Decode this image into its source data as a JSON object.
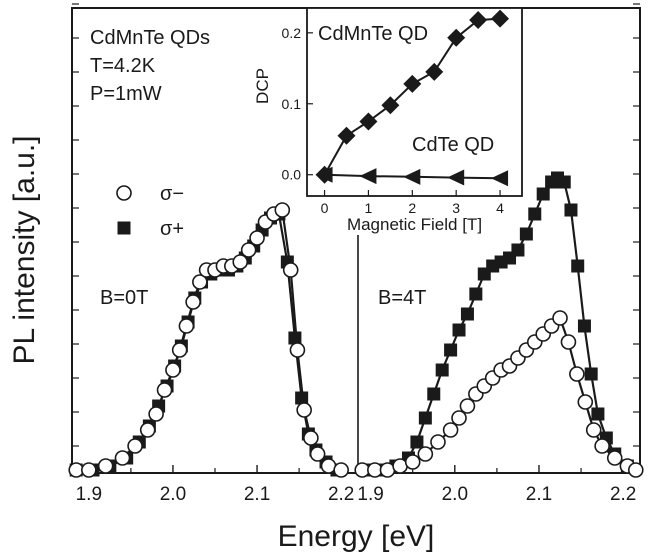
{
  "chart_data": {
    "type": "scatter",
    "ylabel": "PL intensity [a.u.]",
    "xlabel": "Energy [eV]",
    "annotations": [
      "CdMnTe QDs",
      "T=4.2K",
      "P=1mW"
    ],
    "legend": [
      "σ−",
      "σ+"
    ],
    "legend_placement": "left",
    "panels": [
      {
        "label": "B=0T",
        "xlim": [
          1.88,
          2.22
        ],
        "xticks": [
          "1.9",
          "2.0",
          "2.1",
          "2.2"
        ],
        "series": [
          {
            "name": "σ−",
            "marker": "open-circle",
            "points": [
              [
                1.885,
                0.0
              ],
              [
                1.9,
                0.0
              ],
              [
                1.92,
                0.01
              ],
              [
                1.94,
                0.03
              ],
              [
                1.955,
                0.06
              ],
              [
                1.97,
                0.1
              ],
              [
                1.98,
                0.14
              ],
              [
                1.99,
                0.2
              ],
              [
                2.0,
                0.25
              ],
              [
                2.008,
                0.3
              ],
              [
                2.016,
                0.36
              ],
              [
                2.024,
                0.42
              ],
              [
                2.032,
                0.47
              ],
              [
                2.04,
                0.5
              ],
              [
                2.05,
                0.5
              ],
              [
                2.06,
                0.51
              ],
              [
                2.07,
                0.51
              ],
              [
                2.08,
                0.52
              ],
              [
                2.09,
                0.55
              ],
              [
                2.1,
                0.58
              ],
              [
                2.11,
                0.62
              ],
              [
                2.12,
                0.64
              ],
              [
                2.13,
                0.65
              ],
              [
                2.14,
                0.5
              ],
              [
                2.148,
                0.3
              ],
              [
                2.156,
                0.15
              ],
              [
                2.164,
                0.08
              ],
              [
                2.172,
                0.04
              ],
              [
                2.185,
                0.01
              ],
              [
                2.2,
                0.0
              ]
            ]
          },
          {
            "name": "σ+",
            "marker": "filled-square",
            "points": [
              [
                1.885,
                0.0
              ],
              [
                1.905,
                0.0
              ],
              [
                1.925,
                0.01
              ],
              [
                1.945,
                0.03
              ],
              [
                1.96,
                0.07
              ],
              [
                1.972,
                0.11
              ],
              [
                1.983,
                0.16
              ],
              [
                1.993,
                0.21
              ],
              [
                2.002,
                0.26
              ],
              [
                2.01,
                0.31
              ],
              [
                2.018,
                0.37
              ],
              [
                2.026,
                0.43
              ],
              [
                2.034,
                0.47
              ],
              [
                2.045,
                0.49
              ],
              [
                2.056,
                0.5
              ],
              [
                2.066,
                0.5
              ],
              [
                2.076,
                0.51
              ],
              [
                2.086,
                0.53
              ],
              [
                2.096,
                0.56
              ],
              [
                2.106,
                0.6
              ],
              [
                2.116,
                0.63
              ],
              [
                2.126,
                0.64
              ],
              [
                2.136,
                0.52
              ],
              [
                2.145,
                0.33
              ],
              [
                2.153,
                0.18
              ],
              [
                2.161,
                0.09
              ],
              [
                2.17,
                0.05
              ],
              [
                2.182,
                0.02
              ],
              [
                2.195,
                0.0
              ]
            ]
          }
        ]
      },
      {
        "label": "B=4T",
        "xlim": [
          1.885,
          2.22
        ],
        "xticks": [
          "1.9",
          "2.0",
          "2.1",
          "2.2"
        ],
        "series": [
          {
            "name": "σ−",
            "marker": "open-circle",
            "points": [
              [
                1.89,
                0.0
              ],
              [
                1.905,
                0.0
              ],
              [
                1.92,
                0.0
              ],
              [
                1.935,
                0.01
              ],
              [
                1.95,
                0.02
              ],
              [
                1.965,
                0.04
              ],
              [
                1.98,
                0.07
              ],
              [
                1.995,
                0.1
              ],
              [
                2.005,
                0.13
              ],
              [
                2.015,
                0.16
              ],
              [
                2.025,
                0.19
              ],
              [
                2.035,
                0.21
              ],
              [
                2.045,
                0.23
              ],
              [
                2.055,
                0.25
              ],
              [
                2.065,
                0.26
              ],
              [
                2.075,
                0.28
              ],
              [
                2.085,
                0.3
              ],
              [
                2.095,
                0.32
              ],
              [
                2.105,
                0.34
              ],
              [
                2.115,
                0.36
              ],
              [
                2.125,
                0.38
              ],
              [
                2.135,
                0.32
              ],
              [
                2.145,
                0.24
              ],
              [
                2.155,
                0.17
              ],
              [
                2.165,
                0.1
              ],
              [
                2.175,
                0.06
              ],
              [
                2.19,
                0.03
              ],
              [
                2.205,
                0.01
              ],
              [
                2.215,
                0.0
              ]
            ]
          },
          {
            "name": "σ+",
            "marker": "filled-square",
            "points": [
              [
                1.9,
                0.0
              ],
              [
                1.915,
                0.0
              ],
              [
                1.93,
                0.01
              ],
              [
                1.945,
                0.03
              ],
              [
                1.955,
                0.07
              ],
              [
                1.965,
                0.13
              ],
              [
                1.975,
                0.19
              ],
              [
                1.985,
                0.25
              ],
              [
                1.995,
                0.3
              ],
              [
                2.005,
                0.35
              ],
              [
                2.015,
                0.39
              ],
              [
                2.025,
                0.44
              ],
              [
                2.035,
                0.49
              ],
              [
                2.045,
                0.51
              ],
              [
                2.055,
                0.52
              ],
              [
                2.065,
                0.53
              ],
              [
                2.075,
                0.55
              ],
              [
                2.085,
                0.59
              ],
              [
                2.095,
                0.64
              ],
              [
                2.105,
                0.69
              ],
              [
                2.115,
                0.72
              ],
              [
                2.122,
                0.73
              ],
              [
                2.13,
                0.72
              ],
              [
                2.138,
                0.65
              ],
              [
                2.146,
                0.51
              ],
              [
                2.154,
                0.36
              ],
              [
                2.162,
                0.24
              ],
              [
                2.17,
                0.14
              ],
              [
                2.18,
                0.08
              ],
              [
                2.19,
                0.04
              ],
              [
                2.205,
                0.01
              ]
            ]
          }
        ]
      }
    ],
    "inset": {
      "xlabel": "Magnetic Field [T]",
      "ylabel": "DCP",
      "xlim": [
        -0.4,
        4.5
      ],
      "ylim": [
        -0.03,
        0.235
      ],
      "xticks": [
        "0",
        "1",
        "2",
        "3",
        "4"
      ],
      "yticks": [
        "0.0",
        "0.1",
        "0.2"
      ],
      "series": [
        {
          "name": "CdMnTe QD",
          "marker": "filled-diamond",
          "x": [
            0,
            0.5,
            1,
            1.5,
            2,
            2.5,
            3,
            3.5,
            4
          ],
          "y": [
            0.0,
            0.055,
            0.075,
            0.098,
            0.128,
            0.145,
            0.193,
            0.218,
            0.22
          ]
        },
        {
          "name": "CdTe QD",
          "marker": "filled-left-triangle",
          "x": [
            0,
            1,
            2,
            3,
            4
          ],
          "y": [
            0.0,
            -0.002,
            -0.003,
            -0.004,
            -0.005
          ]
        }
      ]
    }
  }
}
